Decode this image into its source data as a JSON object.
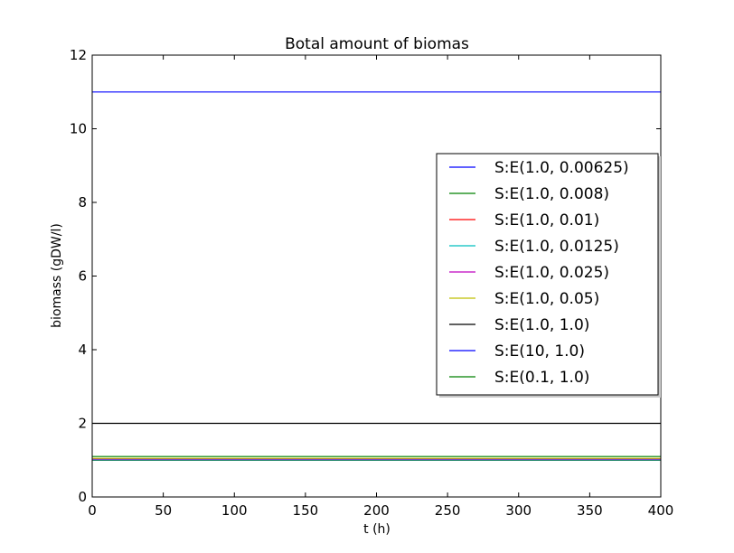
{
  "chart_data": {
    "type": "line",
    "title": "Botal amount of biomas",
    "xlabel": "t (h)",
    "ylabel": "biomass (gDW/l)",
    "xlim": [
      0,
      400
    ],
    "ylim": [
      0,
      12
    ],
    "xticks": [
      0,
      50,
      100,
      150,
      200,
      250,
      300,
      350,
      400
    ],
    "yticks": [
      0,
      2,
      4,
      6,
      8,
      10,
      12
    ],
    "grid": false,
    "legend_position": "right",
    "series": [
      {
        "name": "S:E(1.0, 0.00625)",
        "color": "#0000ff",
        "x": [
          0,
          400
        ],
        "y": [
          1.0,
          1.0
        ]
      },
      {
        "name": "S:E(1.0, 0.008)",
        "color": "#008000",
        "x": [
          0,
          400
        ],
        "y": [
          1.0,
          1.0
        ]
      },
      {
        "name": "S:E(1.0, 0.01)",
        "color": "#ff0000",
        "x": [
          0,
          400
        ],
        "y": [
          1.01,
          1.01
        ]
      },
      {
        "name": "S:E(1.0, 0.0125)",
        "color": "#00bfbf",
        "x": [
          0,
          400
        ],
        "y": [
          1.01,
          1.01
        ]
      },
      {
        "name": "S:E(1.0, 0.025)",
        "color": "#bf00bf",
        "x": [
          0,
          400
        ],
        "y": [
          1.03,
          1.03
        ]
      },
      {
        "name": "S:E(1.0, 0.05)",
        "color": "#bfbf00",
        "x": [
          0,
          400
        ],
        "y": [
          1.05,
          1.05
        ]
      },
      {
        "name": "S:E(1.0, 1.0)",
        "color": "#000000",
        "x": [
          0,
          400
        ],
        "y": [
          2.0,
          2.0
        ]
      },
      {
        "name": "S:E(10, 1.0)",
        "color": "#0000ff",
        "x": [
          0,
          400
        ],
        "y": [
          11.0,
          11.0
        ]
      },
      {
        "name": "S:E(0.1, 1.0)",
        "color": "#008000",
        "x": [
          0,
          400
        ],
        "y": [
          1.1,
          1.1
        ]
      }
    ]
  }
}
